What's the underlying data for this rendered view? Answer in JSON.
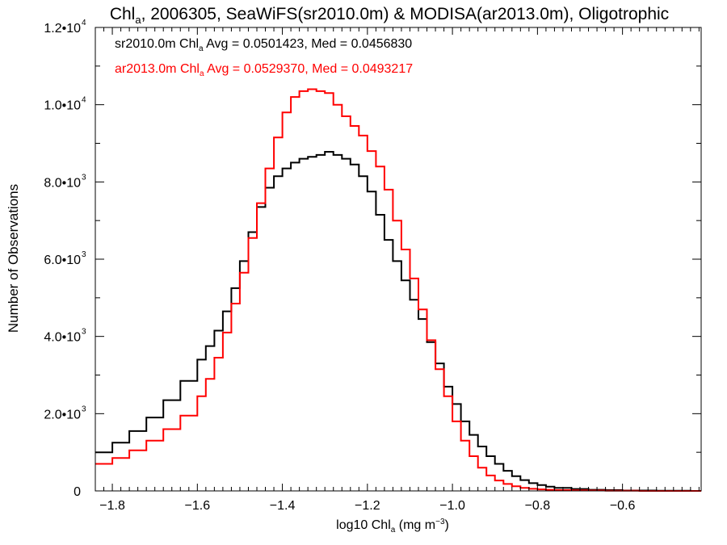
{
  "chart_data": {
    "type": "line",
    "title_parts": [
      "Chl",
      "a",
      ", 2006305, SeaWiFS(sr2010.0m) & MODISA(ar2013.0m), Oligotrophic"
    ],
    "xlabel_parts": [
      "log10 Chl",
      "a",
      " (mg m",
      "−3",
      ")"
    ],
    "ylabel": "Number of Observations",
    "xlim": [
      -1.84,
      -0.415
    ],
    "ylim": [
      0,
      12000
    ],
    "x_ticks": [
      -1.8,
      -1.6,
      -1.4,
      -1.2,
      -1.0,
      -0.8,
      -0.6
    ],
    "x_tick_labels": [
      "−1.8",
      "−1.6",
      "−1.4",
      "−1.2",
      "−1.0",
      "−0.8",
      "−0.6"
    ],
    "y_ticks": [
      {
        "value": 0,
        "mantissa": "0",
        "exponent": ""
      },
      {
        "value": 2000,
        "mantissa": "2.0•10",
        "exponent": "3"
      },
      {
        "value": 4000,
        "mantissa": "4.0•10",
        "exponent": "3"
      },
      {
        "value": 6000,
        "mantissa": "6.0•10",
        "exponent": "3"
      },
      {
        "value": 8000,
        "mantissa": "8.0•10",
        "exponent": "3"
      },
      {
        "value": 10000,
        "mantissa": "1.0•10",
        "exponent": "4"
      },
      {
        "value": 12000,
        "mantissa": "1.2•10",
        "exponent": "4"
      }
    ],
    "annotations": [
      {
        "parts": [
          "sr2010.0m Chl",
          "a",
          " Avg = 0.0501423, Med = 0.0456830"
        ],
        "color": "#000000"
      },
      {
        "parts": [
          "ar2013.0m Chl",
          "a",
          " Avg = 0.0529370, Med = 0.0493217"
        ],
        "color": "#ff0000"
      }
    ],
    "series": [
      {
        "color": "#000000",
        "x": [
          -1.84,
          -1.8,
          -1.76,
          -1.72,
          -1.68,
          -1.64,
          -1.6,
          -1.58,
          -1.56,
          -1.54,
          -1.52,
          -1.5,
          -1.48,
          -1.46,
          -1.44,
          -1.42,
          -1.4,
          -1.38,
          -1.36,
          -1.34,
          -1.32,
          -1.3,
          -1.28,
          -1.26,
          -1.24,
          -1.22,
          -1.2,
          -1.18,
          -1.16,
          -1.14,
          -1.12,
          -1.1,
          -1.08,
          -1.06,
          -1.04,
          -1.02,
          -1.0,
          -0.98,
          -0.96,
          -0.94,
          -0.92,
          -0.9,
          -0.88,
          -0.86,
          -0.84,
          -0.82,
          -0.8,
          -0.78,
          -0.76,
          -0.72,
          -0.68,
          -0.64,
          -0.6,
          -0.56,
          -0.52,
          -0.48,
          -0.44,
          -0.415
        ],
        "y": [
          1000,
          1250,
          1550,
          1900,
          2350,
          2850,
          3400,
          3750,
          4150,
          4650,
          5250,
          5950,
          6700,
          7350,
          7850,
          8150,
          8350,
          8500,
          8600,
          8650,
          8700,
          8780,
          8700,
          8600,
          8450,
          8150,
          7750,
          7150,
          6500,
          5950,
          5450,
          4950,
          4450,
          3850,
          3300,
          2700,
          2250,
          1800,
          1450,
          1150,
          900,
          700,
          520,
          380,
          280,
          200,
          150,
          110,
          80,
          50,
          30,
          20,
          10,
          10,
          5,
          5,
          0,
          0
        ]
      },
      {
        "color": "#ff0000",
        "x": [
          -1.84,
          -1.8,
          -1.76,
          -1.72,
          -1.68,
          -1.64,
          -1.6,
          -1.58,
          -1.56,
          -1.54,
          -1.52,
          -1.5,
          -1.48,
          -1.46,
          -1.44,
          -1.42,
          -1.4,
          -1.38,
          -1.36,
          -1.34,
          -1.32,
          -1.3,
          -1.28,
          -1.26,
          -1.24,
          -1.22,
          -1.2,
          -1.18,
          -1.16,
          -1.14,
          -1.12,
          -1.1,
          -1.08,
          -1.06,
          -1.04,
          -1.02,
          -1.0,
          -0.98,
          -0.96,
          -0.94,
          -0.92,
          -0.9,
          -0.88,
          -0.86,
          -0.84,
          -0.82,
          -0.8,
          -0.78,
          -0.76,
          -0.72,
          -0.68,
          -0.64,
          -0.6,
          -0.56,
          -0.52,
          -0.48,
          -0.44,
          -0.415
        ],
        "y": [
          700,
          850,
          1050,
          1300,
          1600,
          1950,
          2450,
          2900,
          3450,
          4100,
          4850,
          5650,
          6550,
          7450,
          8350,
          9150,
          9800,
          10200,
          10350,
          10400,
          10350,
          10300,
          10000,
          9700,
          9450,
          9200,
          8800,
          8400,
          7800,
          7000,
          6250,
          5500,
          4700,
          3900,
          3150,
          2450,
          1800,
          1300,
          900,
          600,
          400,
          270,
          180,
          120,
          80,
          55,
          40,
          30,
          20,
          15,
          10,
          5,
          5,
          0,
          0,
          0,
          0,
          0
        ]
      }
    ]
  }
}
